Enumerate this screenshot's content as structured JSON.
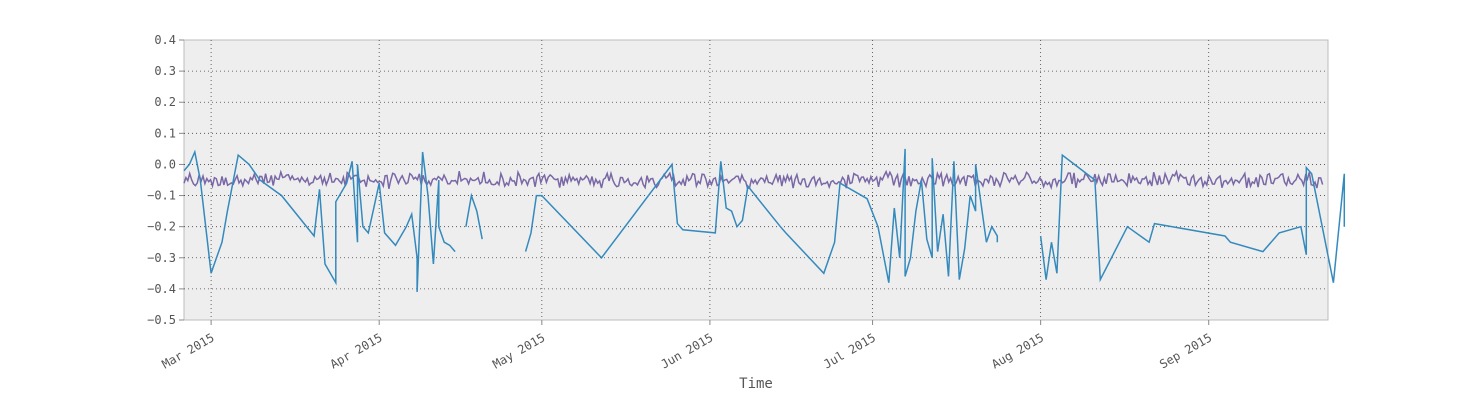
{
  "chart_data": {
    "type": "line",
    "xlabel": "Time",
    "ylabel": "",
    "title": "",
    "xlim": [
      "2015-02-24",
      "2015-09-23"
    ],
    "ylim": [
      -0.5,
      0.4
    ],
    "grid": true,
    "legend": "none",
    "background_color": "#eeeeee",
    "x_ticks": [
      "2015-03-01",
      "2015-04-01",
      "2015-05-01",
      "2015-06-01",
      "2015-07-01",
      "2015-08-01",
      "2015-09-01"
    ],
    "x_tick_labels": [
      "Mar 2015",
      "Apr 2015",
      "May 2015",
      "Jun 2015",
      "Jul 2015",
      "Aug 2015",
      "Sep 2015"
    ],
    "y_ticks": [
      -0.5,
      -0.4,
      -0.3,
      -0.2,
      -0.1,
      0.0,
      0.1,
      0.2,
      0.3,
      0.4
    ],
    "y_tick_labels": [
      "−0.5",
      "−0.4",
      "−0.3",
      "−0.2",
      "−0.1",
      "0.0",
      "0.1",
      "0.2",
      "0.3",
      "0.4"
    ],
    "series": [
      {
        "color": "#348abd",
        "segments": [
          [
            [
              "2015-02-24",
              -0.02
            ],
            [
              "2015-02-25",
              0.0
            ],
            [
              "2015-02-26",
              0.04
            ],
            [
              "2015-02-27",
              -0.05
            ],
            [
              "2015-03-01",
              -0.35
            ],
            [
              "2015-03-02",
              -0.3
            ],
            [
              "2015-03-03",
              -0.25
            ],
            [
              "2015-03-04",
              -0.15
            ],
            [
              "2015-03-06",
              0.03
            ],
            [
              "2015-03-08",
              0.0
            ],
            [
              "2015-03-10",
              -0.05
            ],
            [
              "2015-03-14",
              -0.1
            ],
            [
              "2015-03-20",
              -0.23
            ],
            [
              "2015-03-21",
              -0.08
            ],
            [
              "2015-03-22",
              -0.32
            ],
            [
              "2015-03-24",
              -0.38
            ],
            [
              "2015-03-24",
              -0.12
            ],
            [
              "2015-03-26",
              -0.06
            ],
            [
              "2015-03-27",
              0.01
            ],
            [
              "2015-03-28",
              -0.25
            ],
            [
              "2015-03-28",
              0.0
            ],
            [
              "2015-03-29",
              -0.2
            ],
            [
              "2015-03-30",
              -0.22
            ],
            [
              "2015-03-31",
              -0.14
            ],
            [
              "2015-04-01",
              -0.06
            ],
            [
              "2015-04-02",
              -0.22
            ],
            [
              "2015-04-04",
              -0.26
            ],
            [
              "2015-04-06",
              -0.2
            ],
            [
              "2015-04-07",
              -0.16
            ],
            [
              "2015-04-08",
              -0.3
            ],
            [
              "2015-04-08",
              -0.41
            ],
            [
              "2015-04-09",
              0.04
            ],
            [
              "2015-04-10",
              -0.1
            ],
            [
              "2015-04-11",
              -0.32
            ],
            [
              "2015-04-12",
              -0.05
            ],
            [
              "2015-04-12",
              -0.2
            ],
            [
              "2015-04-13",
              -0.25
            ],
            [
              "2015-04-14",
              -0.26
            ],
            [
              "2015-04-15",
              -0.28
            ]
          ],
          [
            [
              "2015-04-17",
              -0.2
            ],
            [
              "2015-04-18",
              -0.1
            ],
            [
              "2015-04-19",
              -0.15
            ],
            [
              "2015-04-20",
              -0.24
            ]
          ],
          [
            [
              "2015-04-28",
              -0.28
            ],
            [
              "2015-04-29",
              -0.22
            ],
            [
              "2015-04-30",
              -0.1
            ],
            [
              "2015-05-01",
              -0.1
            ],
            [
              "2015-05-12",
              -0.3
            ],
            [
              "2015-05-25",
              0.0
            ],
            [
              "2015-05-26",
              -0.19
            ],
            [
              "2015-05-27",
              -0.21
            ],
            [
              "2015-06-02",
              -0.22
            ],
            [
              "2015-06-03",
              0.01
            ],
            [
              "2015-06-04",
              -0.14
            ],
            [
              "2015-06-05",
              -0.15
            ],
            [
              "2015-06-06",
              -0.2
            ],
            [
              "2015-06-07",
              -0.18
            ],
            [
              "2015-06-08",
              -0.07
            ],
            [
              "2015-06-14",
              -0.2
            ],
            [
              "2015-06-15",
              -0.22
            ],
            [
              "2015-06-22",
              -0.35
            ],
            [
              "2015-06-24",
              -0.25
            ],
            [
              "2015-06-25",
              -0.06
            ],
            [
              "2015-06-30",
              -0.11
            ],
            [
              "2015-07-02",
              -0.2
            ],
            [
              "2015-07-04",
              -0.38
            ],
            [
              "2015-07-05",
              -0.14
            ],
            [
              "2015-07-06",
              -0.3
            ],
            [
              "2015-07-07",
              0.05
            ],
            [
              "2015-07-07",
              -0.36
            ],
            [
              "2015-07-08",
              -0.3
            ],
            [
              "2015-07-09",
              -0.15
            ],
            [
              "2015-07-10",
              -0.05
            ],
            [
              "2015-07-11",
              -0.24
            ],
            [
              "2015-07-12",
              -0.3
            ],
            [
              "2015-07-12",
              0.02
            ],
            [
              "2015-07-13",
              -0.28
            ],
            [
              "2015-07-14",
              -0.16
            ],
            [
              "2015-07-15",
              -0.36
            ],
            [
              "2015-07-16",
              0.01
            ],
            [
              "2015-07-17",
              -0.37
            ],
            [
              "2015-07-18",
              -0.27
            ],
            [
              "2015-07-19",
              -0.1
            ],
            [
              "2015-07-20",
              -0.15
            ],
            [
              "2015-07-20",
              0.0
            ],
            [
              "2015-07-22",
              -0.25
            ],
            [
              "2015-07-23",
              -0.2
            ],
            [
              "2015-07-24",
              -0.23
            ],
            [
              "2015-07-24",
              -0.25
            ]
          ],
          [
            [
              "2015-08-01",
              -0.23
            ],
            [
              "2015-08-02",
              -0.37
            ],
            [
              "2015-08-03",
              -0.25
            ],
            [
              "2015-08-04",
              -0.35
            ],
            [
              "2015-08-05",
              0.03
            ],
            [
              "2015-08-11",
              -0.05
            ],
            [
              "2015-08-12",
              -0.37
            ],
            [
              "2015-08-17",
              -0.2
            ],
            [
              "2015-08-21",
              -0.25
            ],
            [
              "2015-08-22",
              -0.19
            ],
            [
              "2015-09-04",
              -0.23
            ],
            [
              "2015-09-05",
              -0.25
            ],
            [
              "2015-09-11",
              -0.28
            ],
            [
              "2015-09-14",
              -0.22
            ],
            [
              "2015-09-18",
              -0.2
            ],
            [
              "2015-09-19",
              -0.29
            ],
            [
              "2015-09-19",
              -0.01
            ],
            [
              "2015-09-20",
              -0.03
            ],
            [
              "2015-09-24",
              -0.38
            ],
            [
              "2015-09-26",
              -0.03
            ],
            [
              "2015-09-26",
              -0.2
            ]
          ]
        ]
      },
      {
        "color": "#7a68a6",
        "values_summary": "noisy series between -0.08 and -0.01"
      }
    ]
  }
}
